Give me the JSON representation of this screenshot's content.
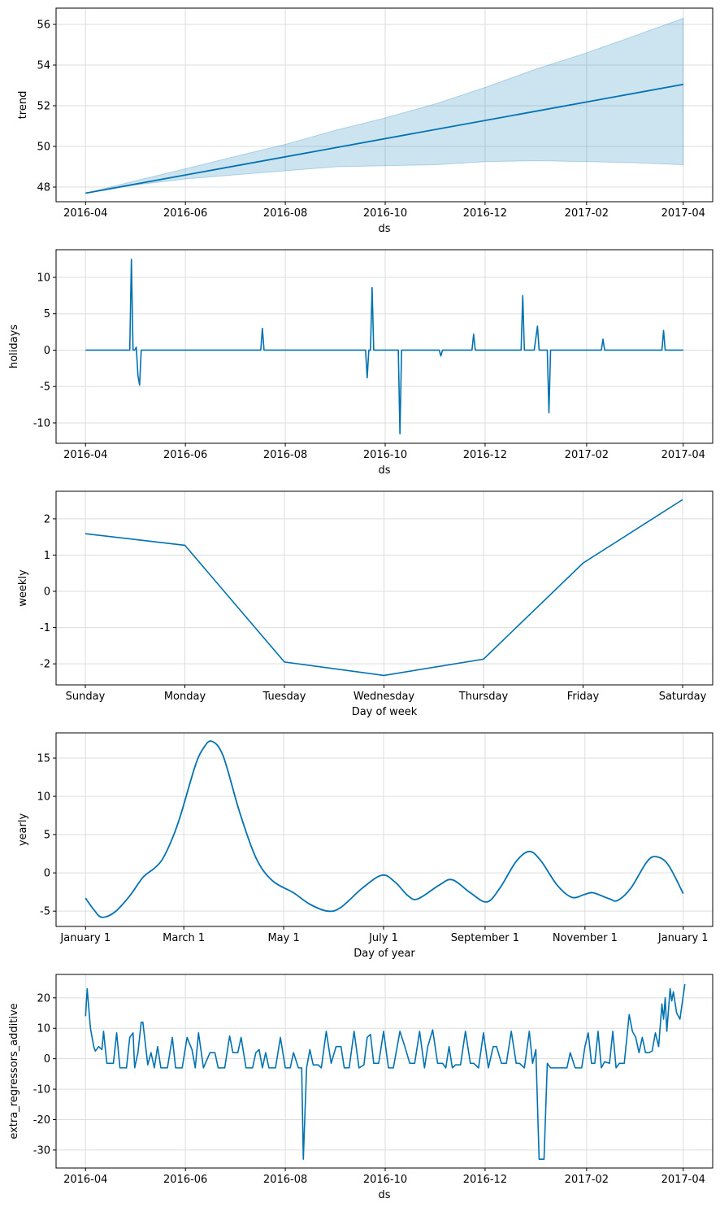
{
  "style": {
    "line_color": "#0072B2",
    "band_color": "#0072B2",
    "band_opacity": 0.2,
    "grid_color": "#dddddd"
  },
  "chart_data": [
    {
      "type": "area",
      "ylabel": "trend",
      "xlabel": "ds",
      "x_type": "date",
      "xlim": [
        "2016-03-14",
        "2017-04-19"
      ],
      "ylim": [
        47.28,
        56.8
      ],
      "xticks": [
        "2016-04-01",
        "2016-06-01",
        "2016-08-01",
        "2016-10-01",
        "2016-12-01",
        "2017-02-01",
        "2017-04-01"
      ],
      "xtick_labels": [
        "2016-04",
        "2016-06",
        "2016-08",
        "2016-10",
        "2016-12",
        "2017-02",
        "2017-04"
      ],
      "yticks": [
        48,
        50,
        52,
        54,
        56
      ],
      "grid": true,
      "line": [
        [
          "2016-04-01",
          47.7
        ],
        [
          "2017-04-01",
          53.05
        ]
      ],
      "band_upper": [
        [
          "2016-04-01",
          47.7
        ],
        [
          "2016-05-01",
          48.3
        ],
        [
          "2016-06-01",
          48.9
        ],
        [
          "2016-07-01",
          49.5
        ],
        [
          "2016-08-01",
          50.1
        ],
        [
          "2016-09-01",
          50.8
        ],
        [
          "2016-10-01",
          51.4
        ],
        [
          "2016-11-01",
          52.1
        ],
        [
          "2016-12-01",
          52.9
        ],
        [
          "2017-01-01",
          53.8
        ],
        [
          "2017-02-01",
          54.6
        ],
        [
          "2017-03-01",
          55.4
        ],
        [
          "2017-04-01",
          56.3
        ]
      ],
      "band_lower": [
        [
          "2016-04-01",
          47.7
        ],
        [
          "2016-05-01",
          48.1
        ],
        [
          "2016-06-01",
          48.4
        ],
        [
          "2016-07-01",
          48.6
        ],
        [
          "2016-08-01",
          48.8
        ],
        [
          "2016-09-01",
          49.0
        ],
        [
          "2016-10-01",
          49.05
        ],
        [
          "2016-11-01",
          49.1
        ],
        [
          "2016-12-01",
          49.25
        ],
        [
          "2017-01-01",
          49.3
        ],
        [
          "2017-02-01",
          49.25
        ],
        [
          "2017-03-01",
          49.2
        ],
        [
          "2017-04-01",
          49.1
        ]
      ]
    },
    {
      "type": "line",
      "ylabel": "holidays",
      "xlabel": "ds",
      "x_type": "date",
      "xlim": [
        "2016-03-14",
        "2017-04-19"
      ],
      "ylim": [
        -12.8,
        13.8
      ],
      "xticks": [
        "2016-04-01",
        "2016-06-01",
        "2016-08-01",
        "2016-10-01",
        "2016-12-01",
        "2017-02-01",
        "2017-04-01"
      ],
      "xtick_labels": [
        "2016-04",
        "2016-06",
        "2016-08",
        "2016-10",
        "2016-12",
        "2017-02",
        "2017-04"
      ],
      "yticks": [
        10,
        5,
        0,
        -5,
        -10
      ],
      "grid": true,
      "points": [
        [
          "2016-04-01",
          0
        ],
        [
          "2016-04-28",
          0
        ],
        [
          "2016-04-29",
          12.5
        ],
        [
          "2016-04-30",
          0
        ],
        [
          "2016-05-01",
          0
        ],
        [
          "2016-05-02",
          0.4
        ],
        [
          "2016-05-03",
          -3.5
        ],
        [
          "2016-05-04",
          -4.8
        ],
        [
          "2016-05-05",
          0
        ],
        [
          "2016-07-17",
          0
        ],
        [
          "2016-07-18",
          3.0
        ],
        [
          "2016-07-19",
          0
        ],
        [
          "2016-09-19",
          0
        ],
        [
          "2016-09-20",
          -3.8
        ],
        [
          "2016-09-21",
          0
        ],
        [
          "2016-09-22",
          0
        ],
        [
          "2016-09-23",
          8.6
        ],
        [
          "2016-09-24",
          0
        ],
        [
          "2016-10-09",
          0
        ],
        [
          "2016-10-10",
          -11.5
        ],
        [
          "2016-10-11",
          0
        ],
        [
          "2016-11-03",
          0
        ],
        [
          "2016-11-04",
          -0.8
        ],
        [
          "2016-11-05",
          0
        ],
        [
          "2016-11-23",
          0
        ],
        [
          "2016-11-24",
          2.2
        ],
        [
          "2016-11-25",
          0
        ],
        [
          "2016-12-23",
          0
        ],
        [
          "2016-12-24",
          7.5
        ],
        [
          "2016-12-25",
          0
        ],
        [
          "2016-12-31",
          0
        ],
        [
          "2017-01-02",
          3.3
        ],
        [
          "2017-01-03",
          0
        ],
        [
          "2017-01-08",
          0
        ],
        [
          "2017-01-09",
          -8.6
        ],
        [
          "2017-01-10",
          0
        ],
        [
          "2017-02-10",
          0
        ],
        [
          "2017-02-11",
          1.5
        ],
        [
          "2017-02-12",
          0
        ],
        [
          "2017-03-19",
          0
        ],
        [
          "2017-03-20",
          2.7
        ],
        [
          "2017-03-21",
          0
        ],
        [
          "2017-04-01",
          0
        ]
      ]
    },
    {
      "type": "line",
      "ylabel": "weekly",
      "xlabel": "Day of week",
      "categories": [
        "Sunday",
        "Monday",
        "Tuesday",
        "Wednesday",
        "Thursday",
        "Friday",
        "Saturday"
      ],
      "values": [
        1.59,
        1.27,
        -1.95,
        -2.32,
        -1.87,
        0.78,
        2.53
      ],
      "ylim": [
        -2.58,
        2.76
      ],
      "yticks": [
        2,
        1,
        0,
        -1,
        -2
      ],
      "grid": true
    },
    {
      "type": "line",
      "ylabel": "yearly",
      "xlabel": "Day of year",
      "x_type": "day_of_year",
      "xlim": [
        -18,
        383
      ],
      "ylim": [
        -7.0,
        18.3
      ],
      "xticks": [
        0,
        60,
        121,
        182,
        244,
        305,
        365
      ],
      "xtick_labels": [
        "January 1",
        "March 1",
        "May 1",
        "July 1",
        "September 1",
        "November 1",
        "January 1"
      ],
      "yticks": [
        15,
        10,
        5,
        0,
        -5
      ],
      "grid": true,
      "points": [
        [
          0,
          -3.3
        ],
        [
          5,
          -4.8
        ],
        [
          10,
          -5.8
        ],
        [
          18,
          -5.1
        ],
        [
          27,
          -3
        ],
        [
          35,
          -0.6
        ],
        [
          42,
          0.6
        ],
        [
          47,
          1.8
        ],
        [
          53,
          4.5
        ],
        [
          58,
          7.5
        ],
        [
          67,
          14
        ],
        [
          72,
          16.3
        ],
        [
          77,
          17.2
        ],
        [
          84,
          15.3
        ],
        [
          94,
          8
        ],
        [
          104,
          2
        ],
        [
          114,
          -1
        ],
        [
          127,
          -2.6
        ],
        [
          137,
          -4.1
        ],
        [
          148,
          -5.0
        ],
        [
          156,
          -4.5
        ],
        [
          169,
          -2
        ],
        [
          181,
          -0.3
        ],
        [
          189,
          -1.2
        ],
        [
          197,
          -3.0
        ],
        [
          203,
          -3.4
        ],
        [
          216,
          -1.6
        ],
        [
          224,
          -0.9
        ],
        [
          235,
          -2.6
        ],
        [
          245,
          -3.8
        ],
        [
          253,
          -2
        ],
        [
          263,
          1.5
        ],
        [
          271,
          2.8
        ],
        [
          278,
          1.6
        ],
        [
          288,
          -1.6
        ],
        [
          297,
          -3.2
        ],
        [
          305,
          -2.8
        ],
        [
          310,
          -2.6
        ],
        [
          320,
          -3.4
        ],
        [
          325,
          -3.6
        ],
        [
          333,
          -2
        ],
        [
          343,
          1.5
        ],
        [
          349,
          2.1
        ],
        [
          356,
          1
        ],
        [
          365,
          -2.7
        ]
      ]
    },
    {
      "type": "line",
      "ylabel": "extra_regressors_additive",
      "xlabel": "ds",
      "x_type": "date",
      "xlim": [
        "2016-03-14",
        "2017-04-19"
      ],
      "ylim": [
        -35.9,
        27.7
      ],
      "xticks": [
        "2016-04-01",
        "2016-06-01",
        "2016-08-01",
        "2016-10-01",
        "2016-12-01",
        "2017-02-01",
        "2017-04-01"
      ],
      "xtick_labels": [
        "2016-04",
        "2016-06",
        "2016-08",
        "2016-10",
        "2016-12",
        "2017-02",
        "2017-04"
      ],
      "yticks": [
        20,
        10,
        0,
        -10,
        -20,
        -30
      ],
      "grid": true,
      "points": [
        [
          "2016-04-01",
          14
        ],
        [
          "2016-04-02",
          23
        ],
        [
          "2016-04-04",
          10
        ],
        [
          "2016-04-06",
          4
        ],
        [
          "2016-04-07",
          2.5
        ],
        [
          "2016-04-09",
          4
        ],
        [
          "2016-04-11",
          3
        ],
        [
          "2016-04-12",
          9
        ],
        [
          "2016-04-14",
          -1.5
        ],
        [
          "2016-04-18",
          -1.5
        ],
        [
          "2016-04-20",
          8.5
        ],
        [
          "2016-04-22",
          -3
        ],
        [
          "2016-04-26",
          -3
        ],
        [
          "2016-04-28",
          7
        ],
        [
          "2016-04-30",
          8.5
        ],
        [
          "2016-05-01",
          -3
        ],
        [
          "2016-05-03",
          2
        ],
        [
          "2016-05-05",
          12
        ],
        [
          "2016-05-06",
          12
        ],
        [
          "2016-05-09",
          -2
        ],
        [
          "2016-05-11",
          2
        ],
        [
          "2016-05-13",
          -3
        ],
        [
          "2016-05-15",
          4
        ],
        [
          "2016-05-17",
          -3
        ],
        [
          "2016-05-21",
          -3
        ],
        [
          "2016-05-24",
          7
        ],
        [
          "2016-05-26",
          -3
        ],
        [
          "2016-05-30",
          -3
        ],
        [
          "2016-06-02",
          7
        ],
        [
          "2016-06-05",
          3
        ],
        [
          "2016-06-07",
          -3
        ],
        [
          "2016-06-09",
          8.5
        ],
        [
          "2016-06-12",
          -3
        ],
        [
          "2016-06-16",
          2
        ],
        [
          "2016-06-19",
          2
        ],
        [
          "2016-06-21",
          -3
        ],
        [
          "2016-06-25",
          -3
        ],
        [
          "2016-06-28",
          7.5
        ],
        [
          "2016-06-30",
          2
        ],
        [
          "2016-07-03",
          2
        ],
        [
          "2016-07-05",
          7
        ],
        [
          "2016-07-08",
          -3
        ],
        [
          "2016-07-12",
          -3
        ],
        [
          "2016-07-14",
          2
        ],
        [
          "2016-07-16",
          3
        ],
        [
          "2016-07-18",
          -3
        ],
        [
          "2016-07-20",
          2
        ],
        [
          "2016-07-22",
          -3
        ],
        [
          "2016-07-26",
          -3
        ],
        [
          "2016-07-29",
          7
        ],
        [
          "2016-08-01",
          -3
        ],
        [
          "2016-08-04",
          -3
        ],
        [
          "2016-08-06",
          2
        ],
        [
          "2016-08-09",
          -3
        ],
        [
          "2016-08-11",
          -3
        ],
        [
          "2016-08-12",
          -33
        ],
        [
          "2016-08-14",
          -3
        ],
        [
          "2016-08-16",
          3
        ],
        [
          "2016-08-18",
          -2
        ],
        [
          "2016-08-21",
          -2
        ],
        [
          "2016-08-23",
          -3
        ],
        [
          "2016-08-26",
          9
        ],
        [
          "2016-08-29",
          -1.5
        ],
        [
          "2016-09-01",
          4
        ],
        [
          "2016-09-04",
          4
        ],
        [
          "2016-09-06",
          -3
        ],
        [
          "2016-09-09",
          -3
        ],
        [
          "2016-09-12",
          9
        ],
        [
          "2016-09-15",
          -3
        ],
        [
          "2016-09-18",
          -2
        ],
        [
          "2016-09-20",
          7
        ],
        [
          "2016-09-22",
          8
        ],
        [
          "2016-09-24",
          -1.5
        ],
        [
          "2016-09-27",
          -1.5
        ],
        [
          "2016-09-30",
          9
        ],
        [
          "2016-10-03",
          -3
        ],
        [
          "2016-10-06",
          -3
        ],
        [
          "2016-10-10",
          9
        ],
        [
          "2016-10-13",
          4
        ],
        [
          "2016-10-16",
          -1.5
        ],
        [
          "2016-10-19",
          -1.5
        ],
        [
          "2016-10-22",
          9
        ],
        [
          "2016-10-25",
          -3
        ],
        [
          "2016-10-27",
          4
        ],
        [
          "2016-10-30",
          9.5
        ],
        [
          "2016-11-02",
          -1.5
        ],
        [
          "2016-11-05",
          -1.5
        ],
        [
          "2016-11-07",
          -3
        ],
        [
          "2016-11-09",
          4
        ],
        [
          "2016-11-11",
          -3
        ],
        [
          "2016-11-13",
          -2
        ],
        [
          "2016-11-16",
          -2
        ],
        [
          "2016-11-19",
          9
        ],
        [
          "2016-11-22",
          -1.5
        ],
        [
          "2016-11-24",
          -1.5
        ],
        [
          "2016-11-27",
          -3
        ],
        [
          "2016-11-30",
          8.5
        ],
        [
          "2016-12-03",
          -3
        ],
        [
          "2016-12-06",
          4
        ],
        [
          "2016-12-08",
          4
        ],
        [
          "2016-12-11",
          -1.5
        ],
        [
          "2016-12-14",
          -1.5
        ],
        [
          "2016-12-17",
          9
        ],
        [
          "2016-12-20",
          -1.5
        ],
        [
          "2016-12-22",
          -1.5
        ],
        [
          "2016-12-25",
          -3
        ],
        [
          "2016-12-28",
          9
        ],
        [
          "2016-12-30",
          -1.5
        ],
        [
          "2017-01-01",
          3
        ],
        [
          "2017-01-03",
          -33
        ],
        [
          "2017-01-06",
          -33
        ],
        [
          "2017-01-08",
          -1.5
        ],
        [
          "2017-01-10",
          -3
        ],
        [
          "2017-01-20",
          -3
        ],
        [
          "2017-01-22",
          2
        ],
        [
          "2017-01-25",
          -3
        ],
        [
          "2017-01-29",
          -3
        ],
        [
          "2017-01-31",
          4
        ],
        [
          "2017-02-02",
          8.5
        ],
        [
          "2017-02-04",
          -1.5
        ],
        [
          "2017-02-06",
          -1.5
        ],
        [
          "2017-02-08",
          9
        ],
        [
          "2017-02-10",
          -3
        ],
        [
          "2017-02-12",
          -1
        ],
        [
          "2017-02-15",
          -1.5
        ],
        [
          "2017-02-17",
          9
        ],
        [
          "2017-02-19",
          -3
        ],
        [
          "2017-02-21",
          -1.5
        ],
        [
          "2017-02-24",
          -1.5
        ],
        [
          "2017-02-27",
          14.5
        ],
        [
          "2017-03-01",
          9
        ],
        [
          "2017-03-03",
          7
        ],
        [
          "2017-03-05",
          2
        ],
        [
          "2017-03-07",
          7
        ],
        [
          "2017-03-09",
          2
        ],
        [
          "2017-03-11",
          2
        ],
        [
          "2017-03-13",
          2.5
        ],
        [
          "2017-03-15",
          8.5
        ],
        [
          "2017-03-17",
          4
        ],
        [
          "2017-03-19",
          18
        ],
        [
          "2017-03-20",
          13
        ],
        [
          "2017-03-21",
          20
        ],
        [
          "2017-03-22",
          9
        ],
        [
          "2017-03-24",
          23
        ],
        [
          "2017-03-25",
          19
        ],
        [
          "2017-03-26",
          22
        ],
        [
          "2017-03-28",
          15
        ],
        [
          "2017-03-30",
          13
        ],
        [
          "2017-04-02",
          24.5
        ]
      ]
    }
  ]
}
